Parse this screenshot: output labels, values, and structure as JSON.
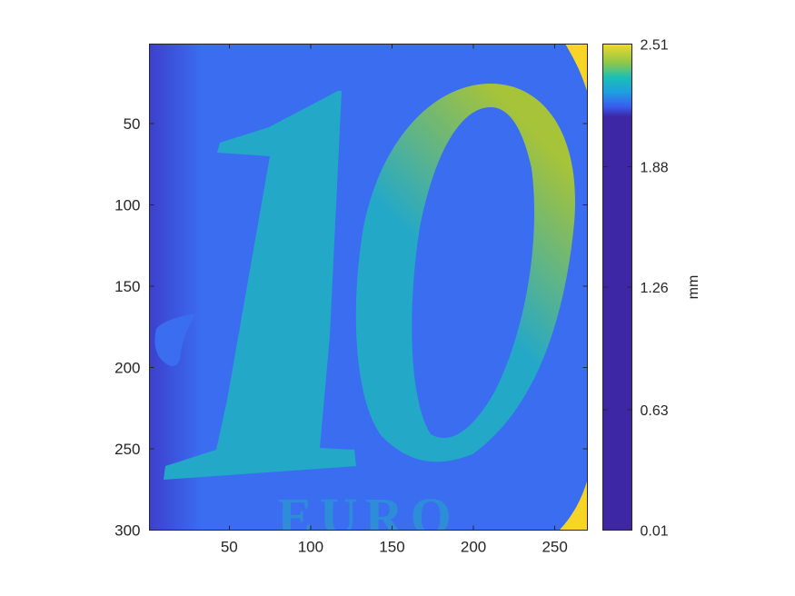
{
  "chart_data": {
    "type": "heatmap",
    "title": "",
    "xlabel": "",
    "ylabel": "",
    "x_ticks": [
      50,
      100,
      150,
      200,
      250
    ],
    "y_ticks": [
      50,
      100,
      150,
      200,
      250,
      300
    ],
    "xlim": [
      1,
      270
    ],
    "ylim": [
      1,
      300
    ],
    "y_direction": "reversed",
    "image_text": [
      "10",
      "EURO"
    ],
    "colorbar": {
      "label": "mm",
      "limits": [
        0.01,
        2.51
      ],
      "ticks": [
        0.01,
        0.63,
        1.26,
        1.88,
        2.51
      ],
      "tick_labels": [
        "0.01",
        "0.63",
        "1.26",
        "1.88",
        "2.51"
      ],
      "colormap": "parula",
      "colormap_break_fraction": 0.85
    },
    "colors": {
      "background": "#3b6df0",
      "left_edge": "#3d3fcc",
      "numeral": "#24a8c8",
      "numeral_high": "#a6c33a",
      "peak": "#f8d426"
    }
  }
}
